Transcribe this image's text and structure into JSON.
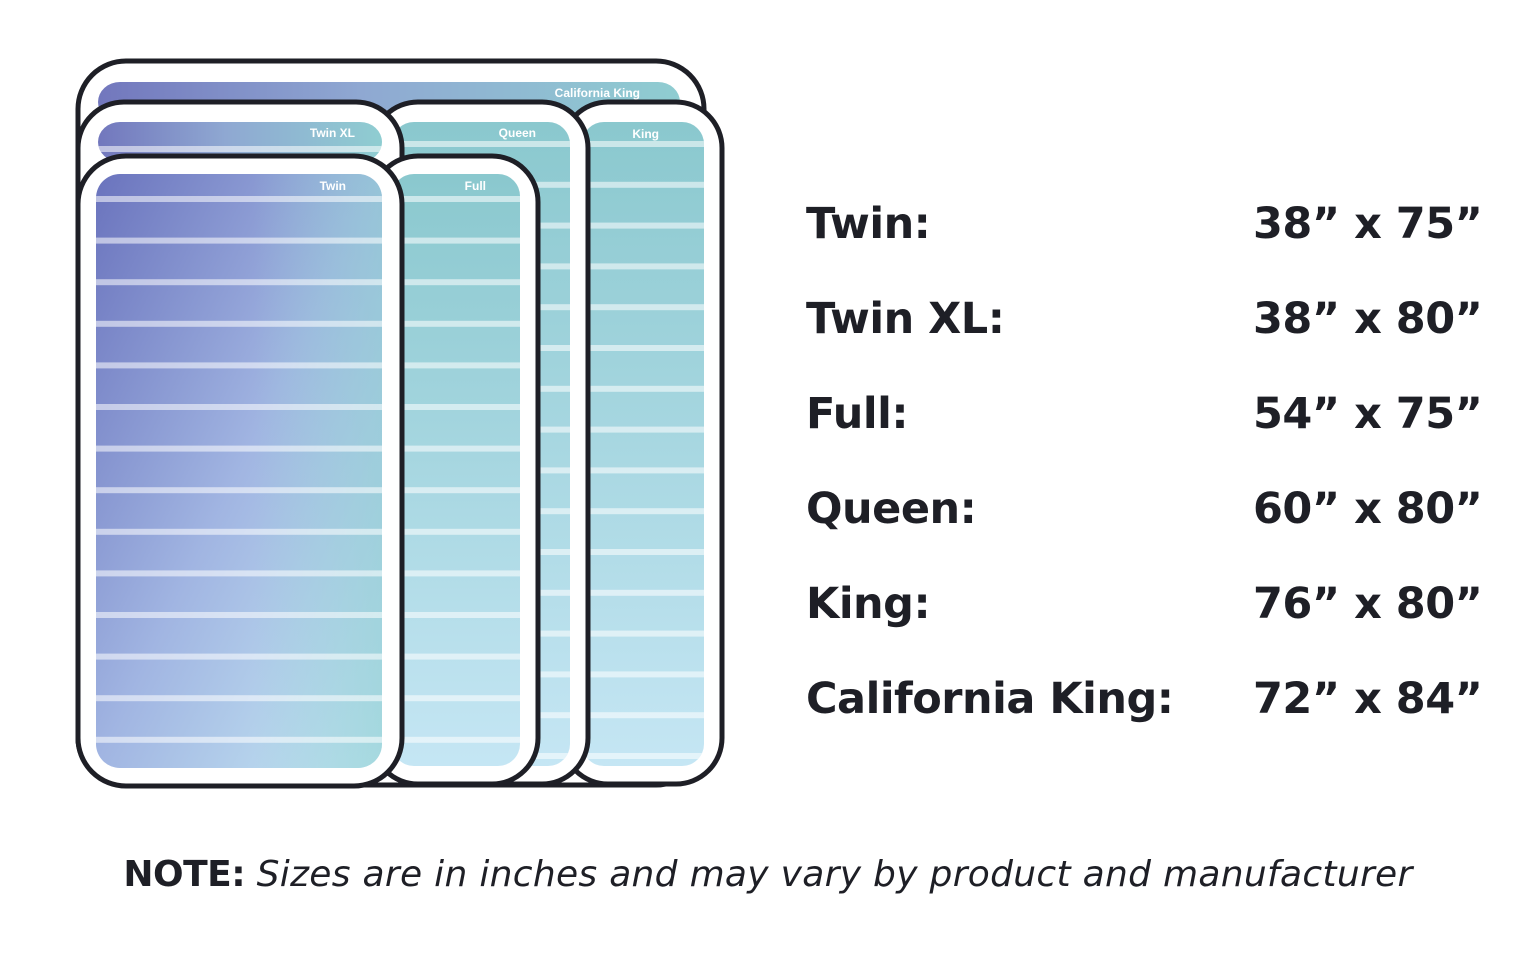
{
  "mattresses": [
    {
      "id": "california-king",
      "tag": "California King"
    },
    {
      "id": "king",
      "tag": "King"
    },
    {
      "id": "queen",
      "tag": "Queen"
    },
    {
      "id": "twin-xl",
      "tag": "Twin XL"
    },
    {
      "id": "full",
      "tag": "Full"
    },
    {
      "id": "twin",
      "tag": "Twin"
    }
  ],
  "sizes": [
    {
      "name": "Twin:",
      "dimensions": "38” x 75”"
    },
    {
      "name": "Twin XL:",
      "dimensions": "38” x 80”"
    },
    {
      "name": "Full:",
      "dimensions": "54” x 75”"
    },
    {
      "name": "Queen:",
      "dimensions": "60” x 80”"
    },
    {
      "name": "King:",
      "dimensions": "76” x 80”"
    },
    {
      "name": "California King:",
      "dimensions": "72” x 84”"
    }
  ],
  "note": {
    "label": "NOTE:",
    "text": "Sizes are in inches and may vary by product and manufacturer"
  },
  "colors": {
    "outline": "#1e1f26",
    "gradient_start": "#6c74bd",
    "gradient_mid": "#a3b6e0",
    "gradient_end": "#c8e8f5",
    "teal": "#89c9cf",
    "stripe": "#ffffff",
    "text": "#1e1f26"
  }
}
